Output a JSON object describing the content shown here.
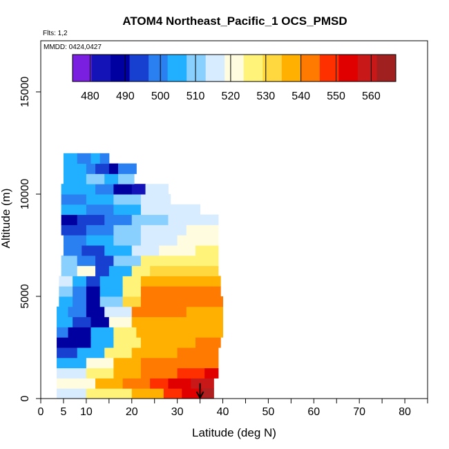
{
  "chart_data": {
    "type": "heatmap",
    "title": "ATOM4 Northeast_Pacific_1 OCS_PMSD",
    "flights_label": "Flts: 1,2",
    "dates_label": "MMDD: 0424,0427",
    "xlabel": "Latitude (deg N)",
    "ylabel": "Altitude (m)",
    "xlim": [
      0,
      85
    ],
    "ylim": [
      0,
      17500
    ],
    "x_ticks": [
      0,
      5,
      10,
      20,
      30,
      40,
      50,
      60,
      70,
      80
    ],
    "x_minor_ticks": [
      15,
      25,
      35,
      45,
      55,
      65,
      75,
      85
    ],
    "y_ticks": [
      0,
      5000,
      10000,
      15000
    ],
    "colorbar": {
      "min": 475,
      "max": 567,
      "ticks": [
        480,
        490,
        500,
        510,
        520,
        530,
        540,
        550,
        560
      ],
      "colors": [
        "#7a1fe0",
        "#1313b8",
        "#0000a0",
        "#1840d0",
        "#2a80f0",
        "#20b0ff",
        "#8ad0ff",
        "#d8ecff",
        "#fffce0",
        "#fff37a",
        "#ffd840",
        "#ffb000",
        "#ff7a00",
        "#ff3000",
        "#e00000",
        "#c81818",
        "#a02020"
      ]
    },
    "bin_height_m": 500,
    "rows": [
      {
        "alt": 0,
        "x0": 3.5,
        "x1": 38,
        "seg": [
          [
            3.5,
            517
          ],
          [
            10,
            525
          ],
          [
            20,
            537
          ],
          [
            27,
            546
          ],
          [
            31,
            555
          ],
          [
            36,
            563
          ]
        ]
      },
      {
        "alt": 500,
        "x0": 3.5,
        "x1": 38,
        "seg": [
          [
            3.5,
            520
          ],
          [
            12,
            535
          ],
          [
            18,
            543
          ],
          [
            24,
            550
          ],
          [
            28,
            556
          ],
          [
            33,
            561
          ]
        ]
      },
      {
        "alt": 1000,
        "x0": 3.5,
        "x1": 39,
        "seg": [
          [
            3.5,
            513
          ],
          [
            10,
            527
          ],
          [
            16,
            538
          ],
          [
            22,
            545
          ],
          [
            30,
            550
          ],
          [
            36,
            553
          ]
        ]
      },
      {
        "alt": 1500,
        "x0": 3.5,
        "x1": 39,
        "seg": [
          [
            3.5,
            505
          ],
          [
            10,
            520
          ],
          [
            16,
            535
          ],
          [
            22,
            542
          ],
          [
            32,
            545
          ]
        ]
      },
      {
        "alt": 2000,
        "x0": 3.5,
        "x1": 39,
        "seg": [
          [
            3.5,
            493
          ],
          [
            8,
            505
          ],
          [
            14,
            525
          ],
          [
            20,
            538
          ],
          [
            30,
            541
          ]
        ]
      },
      {
        "alt": 2500,
        "x0": 3.5,
        "x1": 39.5,
        "seg": [
          [
            3.5,
            486
          ],
          [
            7,
            490
          ],
          [
            11,
            505
          ],
          [
            16,
            528
          ],
          [
            22,
            537
          ],
          [
            34,
            540
          ]
        ]
      },
      {
        "alt": 3000,
        "x0": 3.5,
        "x1": 40,
        "seg": [
          [
            3.5,
            500
          ],
          [
            6,
            489
          ],
          [
            11,
            505
          ],
          [
            16,
            528
          ],
          [
            21,
            536
          ],
          [
            35,
            538
          ]
        ]
      },
      {
        "alt": 3500,
        "x0": 3.5,
        "x1": 40,
        "seg": [
          [
            3.5,
            506
          ],
          [
            7,
            495
          ],
          [
            11,
            490
          ],
          [
            15,
            522
          ],
          [
            20,
            537
          ],
          [
            33,
            536
          ]
        ]
      },
      {
        "alt": 4000,
        "x0": 3.5,
        "x1": 40,
        "seg": [
          [
            3.5,
            505
          ],
          [
            6,
            498
          ],
          [
            10,
            489
          ],
          [
            14,
            515
          ],
          [
            20,
            540
          ],
          [
            32,
            538
          ]
        ]
      },
      {
        "alt": 4500,
        "x0": 4,
        "x1": 40,
        "seg": [
          [
            4,
            507
          ],
          [
            7,
            500
          ],
          [
            10,
            488
          ],
          [
            13,
            510
          ],
          [
            18,
            532
          ],
          [
            22,
            540
          ],
          [
            30,
            542
          ]
        ]
      },
      {
        "alt": 5000,
        "x0": 4,
        "x1": 39.5,
        "seg": [
          [
            4,
            512
          ],
          [
            7,
            500
          ],
          [
            10,
            490
          ],
          [
            13,
            505
          ],
          [
            18,
            528
          ],
          [
            22,
            542
          ],
          [
            30,
            545
          ]
        ]
      },
      {
        "alt": 5500,
        "x0": 4,
        "x1": 39.5,
        "seg": [
          [
            4,
            518
          ],
          [
            7,
            505
          ],
          [
            10,
            492
          ],
          [
            13,
            505
          ],
          [
            18,
            525
          ],
          [
            22,
            538
          ],
          [
            32,
            538
          ]
        ]
      },
      {
        "alt": 6000,
        "x0": 4.5,
        "x1": 39,
        "seg": [
          [
            4.5,
            512
          ],
          [
            8,
            520
          ],
          [
            12,
            493
          ],
          [
            15,
            505
          ],
          [
            20,
            525
          ],
          [
            24,
            533
          ],
          [
            34,
            530
          ]
        ]
      },
      {
        "alt": 6500,
        "x0": 4.5,
        "x1": 39,
        "seg": [
          [
            4.5,
            510
          ],
          [
            8,
            500
          ],
          [
            12,
            492
          ],
          [
            16,
            508
          ],
          [
            22,
            525
          ],
          [
            30,
            527
          ]
        ]
      },
      {
        "alt": 7000,
        "x0": 5,
        "x1": 39,
        "seg": [
          [
            5,
            500
          ],
          [
            9,
            493
          ],
          [
            14,
            505
          ],
          [
            20,
            518
          ],
          [
            26,
            522
          ],
          [
            34,
            526
          ]
        ]
      },
      {
        "alt": 7500,
        "x0": 5,
        "x1": 39,
        "seg": [
          [
            5,
            500
          ],
          [
            10,
            505
          ],
          [
            16,
            512
          ],
          [
            22,
            518
          ],
          [
            30,
            522
          ]
        ]
      },
      {
        "alt": 8000,
        "x0": 4.5,
        "x1": 39,
        "seg": [
          [
            4.5,
            496
          ],
          [
            10,
            502
          ],
          [
            16,
            508
          ],
          [
            22,
            515
          ],
          [
            32,
            520
          ]
        ]
      },
      {
        "alt": 8500,
        "x0": 4.5,
        "x1": 39,
        "seg": [
          [
            4.5,
            486
          ],
          [
            8,
            492
          ],
          [
            14,
            500
          ],
          [
            20,
            510
          ],
          [
            28,
            518
          ]
        ]
      },
      {
        "alt": 9000,
        "x0": 4.5,
        "x1": 35,
        "seg": [
          [
            4.5,
            503
          ],
          [
            10,
            499
          ],
          [
            16,
            507
          ],
          [
            22,
            515
          ],
          [
            30,
            518
          ]
        ]
      },
      {
        "alt": 9500,
        "x0": 4.5,
        "x1": 28.5,
        "seg": [
          [
            4.5,
            500
          ],
          [
            10,
            506
          ],
          [
            16,
            512
          ],
          [
            22,
            517
          ]
        ]
      },
      {
        "alt": 10000,
        "x0": 4.5,
        "x1": 28,
        "seg": [
          [
            4.5,
            506
          ],
          [
            12,
            497
          ],
          [
            16,
            490
          ],
          [
            20,
            483
          ],
          [
            23,
            513
          ]
        ]
      },
      {
        "alt": 10500,
        "x0": 5,
        "x1": 20.5,
        "seg": [
          [
            5,
            505
          ],
          [
            10,
            510
          ],
          [
            14,
            506
          ],
          [
            17,
            512
          ]
        ]
      },
      {
        "alt": 11000,
        "x0": 5,
        "x1": 21,
        "seg": [
          [
            5,
            507
          ],
          [
            10,
            500
          ],
          [
            12,
            493
          ],
          [
            15,
            486
          ],
          [
            17,
            497
          ]
        ]
      },
      {
        "alt": 11500,
        "x0": 5,
        "x1": 15,
        "seg": [
          [
            5,
            505
          ],
          [
            8,
            499
          ],
          [
            11,
            503
          ],
          [
            13,
            500
          ]
        ]
      }
    ],
    "arrow": {
      "lat": 35,
      "alt_top": 750,
      "alt_bottom": 0
    },
    "overflow_box": {
      "lat0": 35.5,
      "lat1": 38,
      "alt0": 0,
      "alt1": 500,
      "color": "#b02020"
    }
  }
}
